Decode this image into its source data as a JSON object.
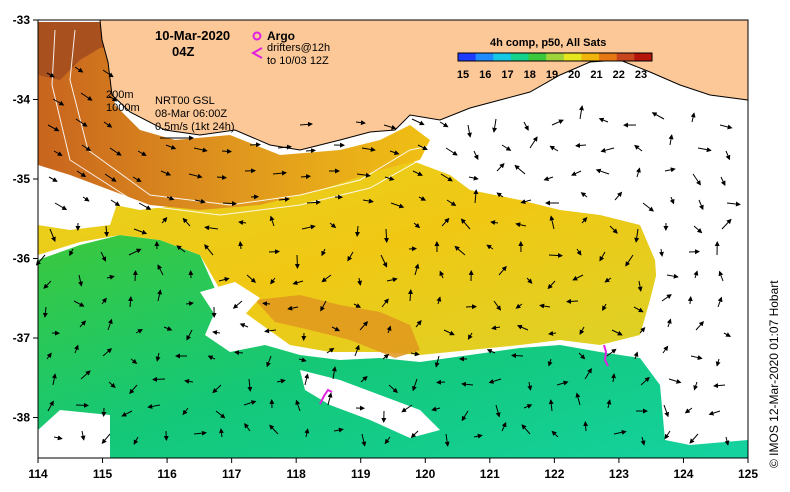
{
  "header": {
    "date": "10-Mar-2020",
    "time": "04Z"
  },
  "legend_argo": {
    "argo_label": "Argo",
    "drifters_line1": "drifters@12h",
    "drifters_line2": "to 10/03 12Z"
  },
  "contours": {
    "label_200": "200m",
    "label_1000": "1000m"
  },
  "currents": {
    "source": "NRT00 GSL",
    "date": "08-Mar 06:00Z",
    "scale_label": "0.5m/s (1kt 24h)"
  },
  "colorbar": {
    "title": "4h comp, p50, All Sats",
    "ticks": [
      "15",
      "16",
      "17",
      "18",
      "19",
      "20",
      "21",
      "22",
      "23"
    ],
    "colors": [
      "#1e3cff",
      "#1e8cff",
      "#14c8e6",
      "#14d28c",
      "#3cc83c",
      "#a0d23c",
      "#e6e61e",
      "#f0b40a",
      "#e67814",
      "#c8461e",
      "#b4140a"
    ]
  },
  "axes": {
    "x_ticks": [
      "114",
      "115",
      "116",
      "117",
      "118",
      "119",
      "120",
      "121",
      "122",
      "123",
      "124",
      "125"
    ],
    "y_ticks": [
      "-33",
      "-34",
      "-35",
      "-36",
      "-37",
      "-38"
    ]
  },
  "credit": "© IMOS 12-Mar-2020 01:07 Hobart",
  "colors": {
    "land": "#fcc898",
    "frame": "#000000"
  }
}
